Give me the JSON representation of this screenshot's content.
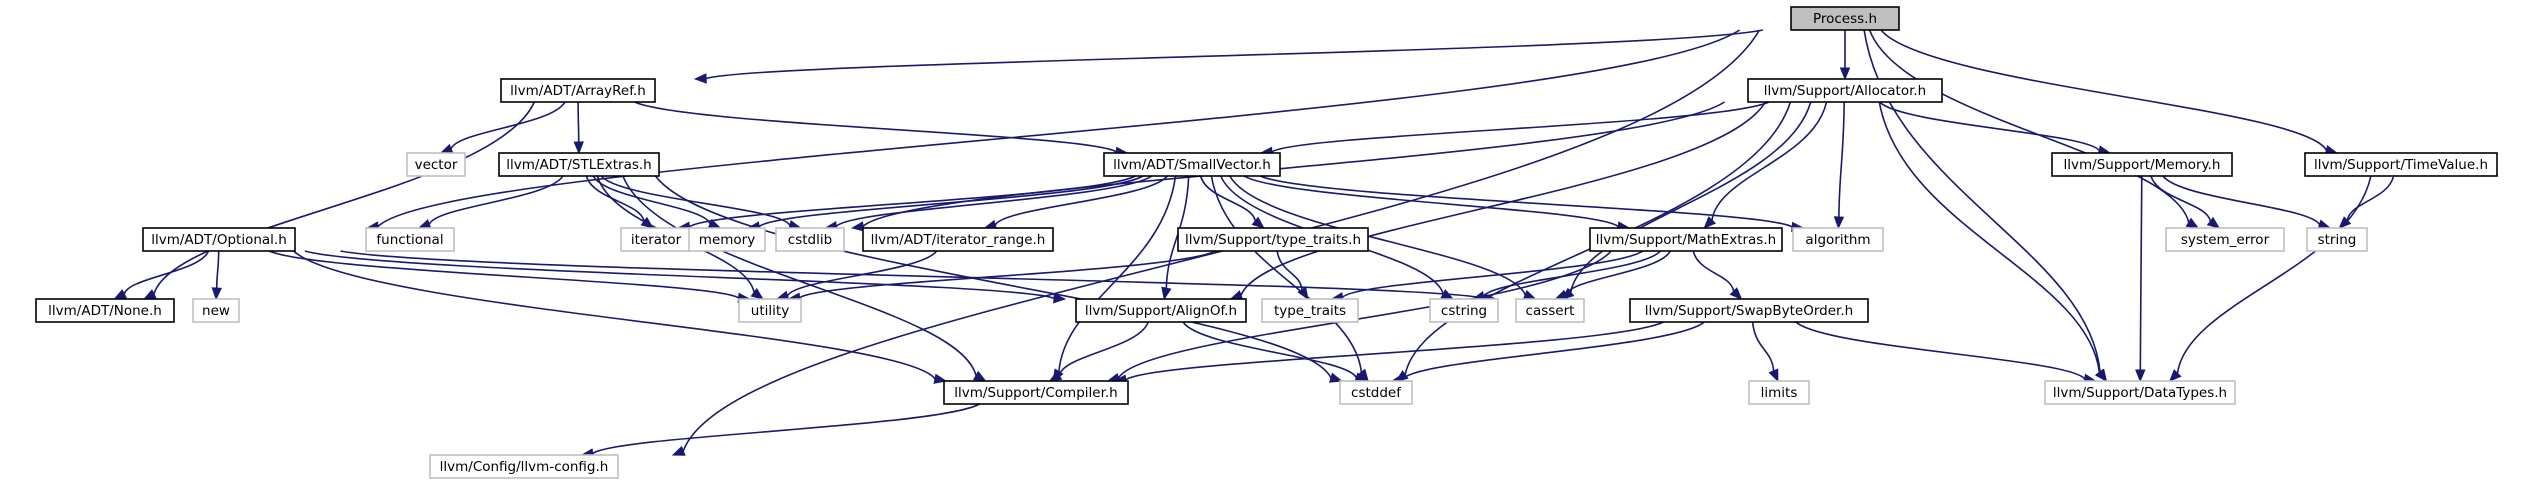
{
  "nodes": {
    "process_h": "Process.h",
    "arrayref_h": "llvm/ADT/ArrayRef.h",
    "allocator_h": "llvm/Support/Allocator.h",
    "vector": "vector",
    "stlextras_h": "llvm/ADT/STLExtras.h",
    "smallvector_h": "llvm/ADT/SmallVector.h",
    "memory_h": "llvm/Support/Memory.h",
    "timevalue_h": "llvm/Support/TimeValue.h",
    "optional_h": "llvm/ADT/Optional.h",
    "functional": "functional",
    "iterator": "iterator",
    "memory": "memory",
    "cstdlib": "cstdlib",
    "iterator_range_h": "llvm/ADT/iterator_range.h",
    "type_traits_h": "llvm/Support/type_traits.h",
    "mathextras_h": "llvm/Support/MathExtras.h",
    "algorithm": "algorithm",
    "system_error": "system_error",
    "string": "string",
    "none_h": "llvm/ADT/None.h",
    "new": "new",
    "utility": "utility",
    "alignof_h": "llvm/Support/AlignOf.h",
    "type_traits": "type_traits",
    "cstring": "cstring",
    "cassert": "cassert",
    "swapbyteorder_h": "llvm/Support/SwapByteOrder.h",
    "compiler_h": "llvm/Support/Compiler.h",
    "cstddef": "cstddef",
    "limits": "limits",
    "datatypes_h": "llvm/Support/DataTypes.h",
    "llvm_config_h": "llvm/Config/llvm-config.h"
  },
  "edges": [
    [
      "process_h",
      "arrayref_h"
    ],
    [
      "process_h",
      "allocator_h"
    ],
    [
      "process_h",
      "optional_h"
    ],
    [
      "process_h",
      "timevalue_h"
    ],
    [
      "process_h",
      "system_error"
    ],
    [
      "process_h",
      "datatypes_h"
    ],
    [
      "process_h",
      "llvm_config_h"
    ],
    [
      "arrayref_h",
      "vector"
    ],
    [
      "arrayref_h",
      "stlextras_h"
    ],
    [
      "arrayref_h",
      "smallvector_h"
    ],
    [
      "arrayref_h",
      "none_h"
    ],
    [
      "allocator_h",
      "smallvector_h"
    ],
    [
      "allocator_h",
      "memory_h"
    ],
    [
      "allocator_h",
      "cstdlib"
    ],
    [
      "allocator_h",
      "alignof_h"
    ],
    [
      "allocator_h",
      "mathextras_h"
    ],
    [
      "allocator_h",
      "algorithm"
    ],
    [
      "allocator_h",
      "cassert"
    ],
    [
      "allocator_h",
      "cstddef"
    ],
    [
      "allocator_h",
      "datatypes_h"
    ],
    [
      "stlextras_h",
      "functional"
    ],
    [
      "stlextras_h",
      "iterator"
    ],
    [
      "stlextras_h",
      "memory"
    ],
    [
      "stlextras_h",
      "cstdlib"
    ],
    [
      "stlextras_h",
      "utility"
    ],
    [
      "stlextras_h",
      "compiler_h"
    ],
    [
      "stlextras_h",
      "cstddef"
    ],
    [
      "smallvector_h",
      "iterator"
    ],
    [
      "smallvector_h",
      "memory"
    ],
    [
      "smallvector_h",
      "cstdlib"
    ],
    [
      "smallvector_h",
      "iterator_range_h"
    ],
    [
      "smallvector_h",
      "type_traits_h"
    ],
    [
      "smallvector_h",
      "mathextras_h"
    ],
    [
      "smallvector_h",
      "algorithm"
    ],
    [
      "smallvector_h",
      "alignof_h"
    ],
    [
      "smallvector_h",
      "compiler_h"
    ],
    [
      "smallvector_h",
      "cstring"
    ],
    [
      "smallvector_h",
      "cassert"
    ],
    [
      "smallvector_h",
      "cstddef"
    ],
    [
      "memory_h",
      "system_error"
    ],
    [
      "memory_h",
      "string"
    ],
    [
      "memory_h",
      "datatypes_h"
    ],
    [
      "timevalue_h",
      "string"
    ],
    [
      "timevalue_h",
      "datatypes_h"
    ],
    [
      "optional_h",
      "none_h"
    ],
    [
      "optional_h",
      "new"
    ],
    [
      "optional_h",
      "utility"
    ],
    [
      "optional_h",
      "alignof_h"
    ],
    [
      "optional_h",
      "compiler_h"
    ],
    [
      "optional_h",
      "cassert"
    ],
    [
      "iterator_range_h",
      "utility"
    ],
    [
      "type_traits_h",
      "utility"
    ],
    [
      "type_traits_h",
      "type_traits"
    ],
    [
      "mathextras_h",
      "type_traits"
    ],
    [
      "mathextras_h",
      "cstring"
    ],
    [
      "mathextras_h",
      "cassert"
    ],
    [
      "mathextras_h",
      "swapbyteorder_h"
    ],
    [
      "mathextras_h",
      "compiler_h"
    ],
    [
      "alignof_h",
      "compiler_h"
    ],
    [
      "alignof_h",
      "cstddef"
    ],
    [
      "swapbyteorder_h",
      "compiler_h"
    ],
    [
      "swapbyteorder_h",
      "cstddef"
    ],
    [
      "swapbyteorder_h",
      "limits"
    ],
    [
      "swapbyteorder_h",
      "datatypes_h"
    ],
    [
      "compiler_h",
      "llvm_config_h"
    ]
  ]
}
